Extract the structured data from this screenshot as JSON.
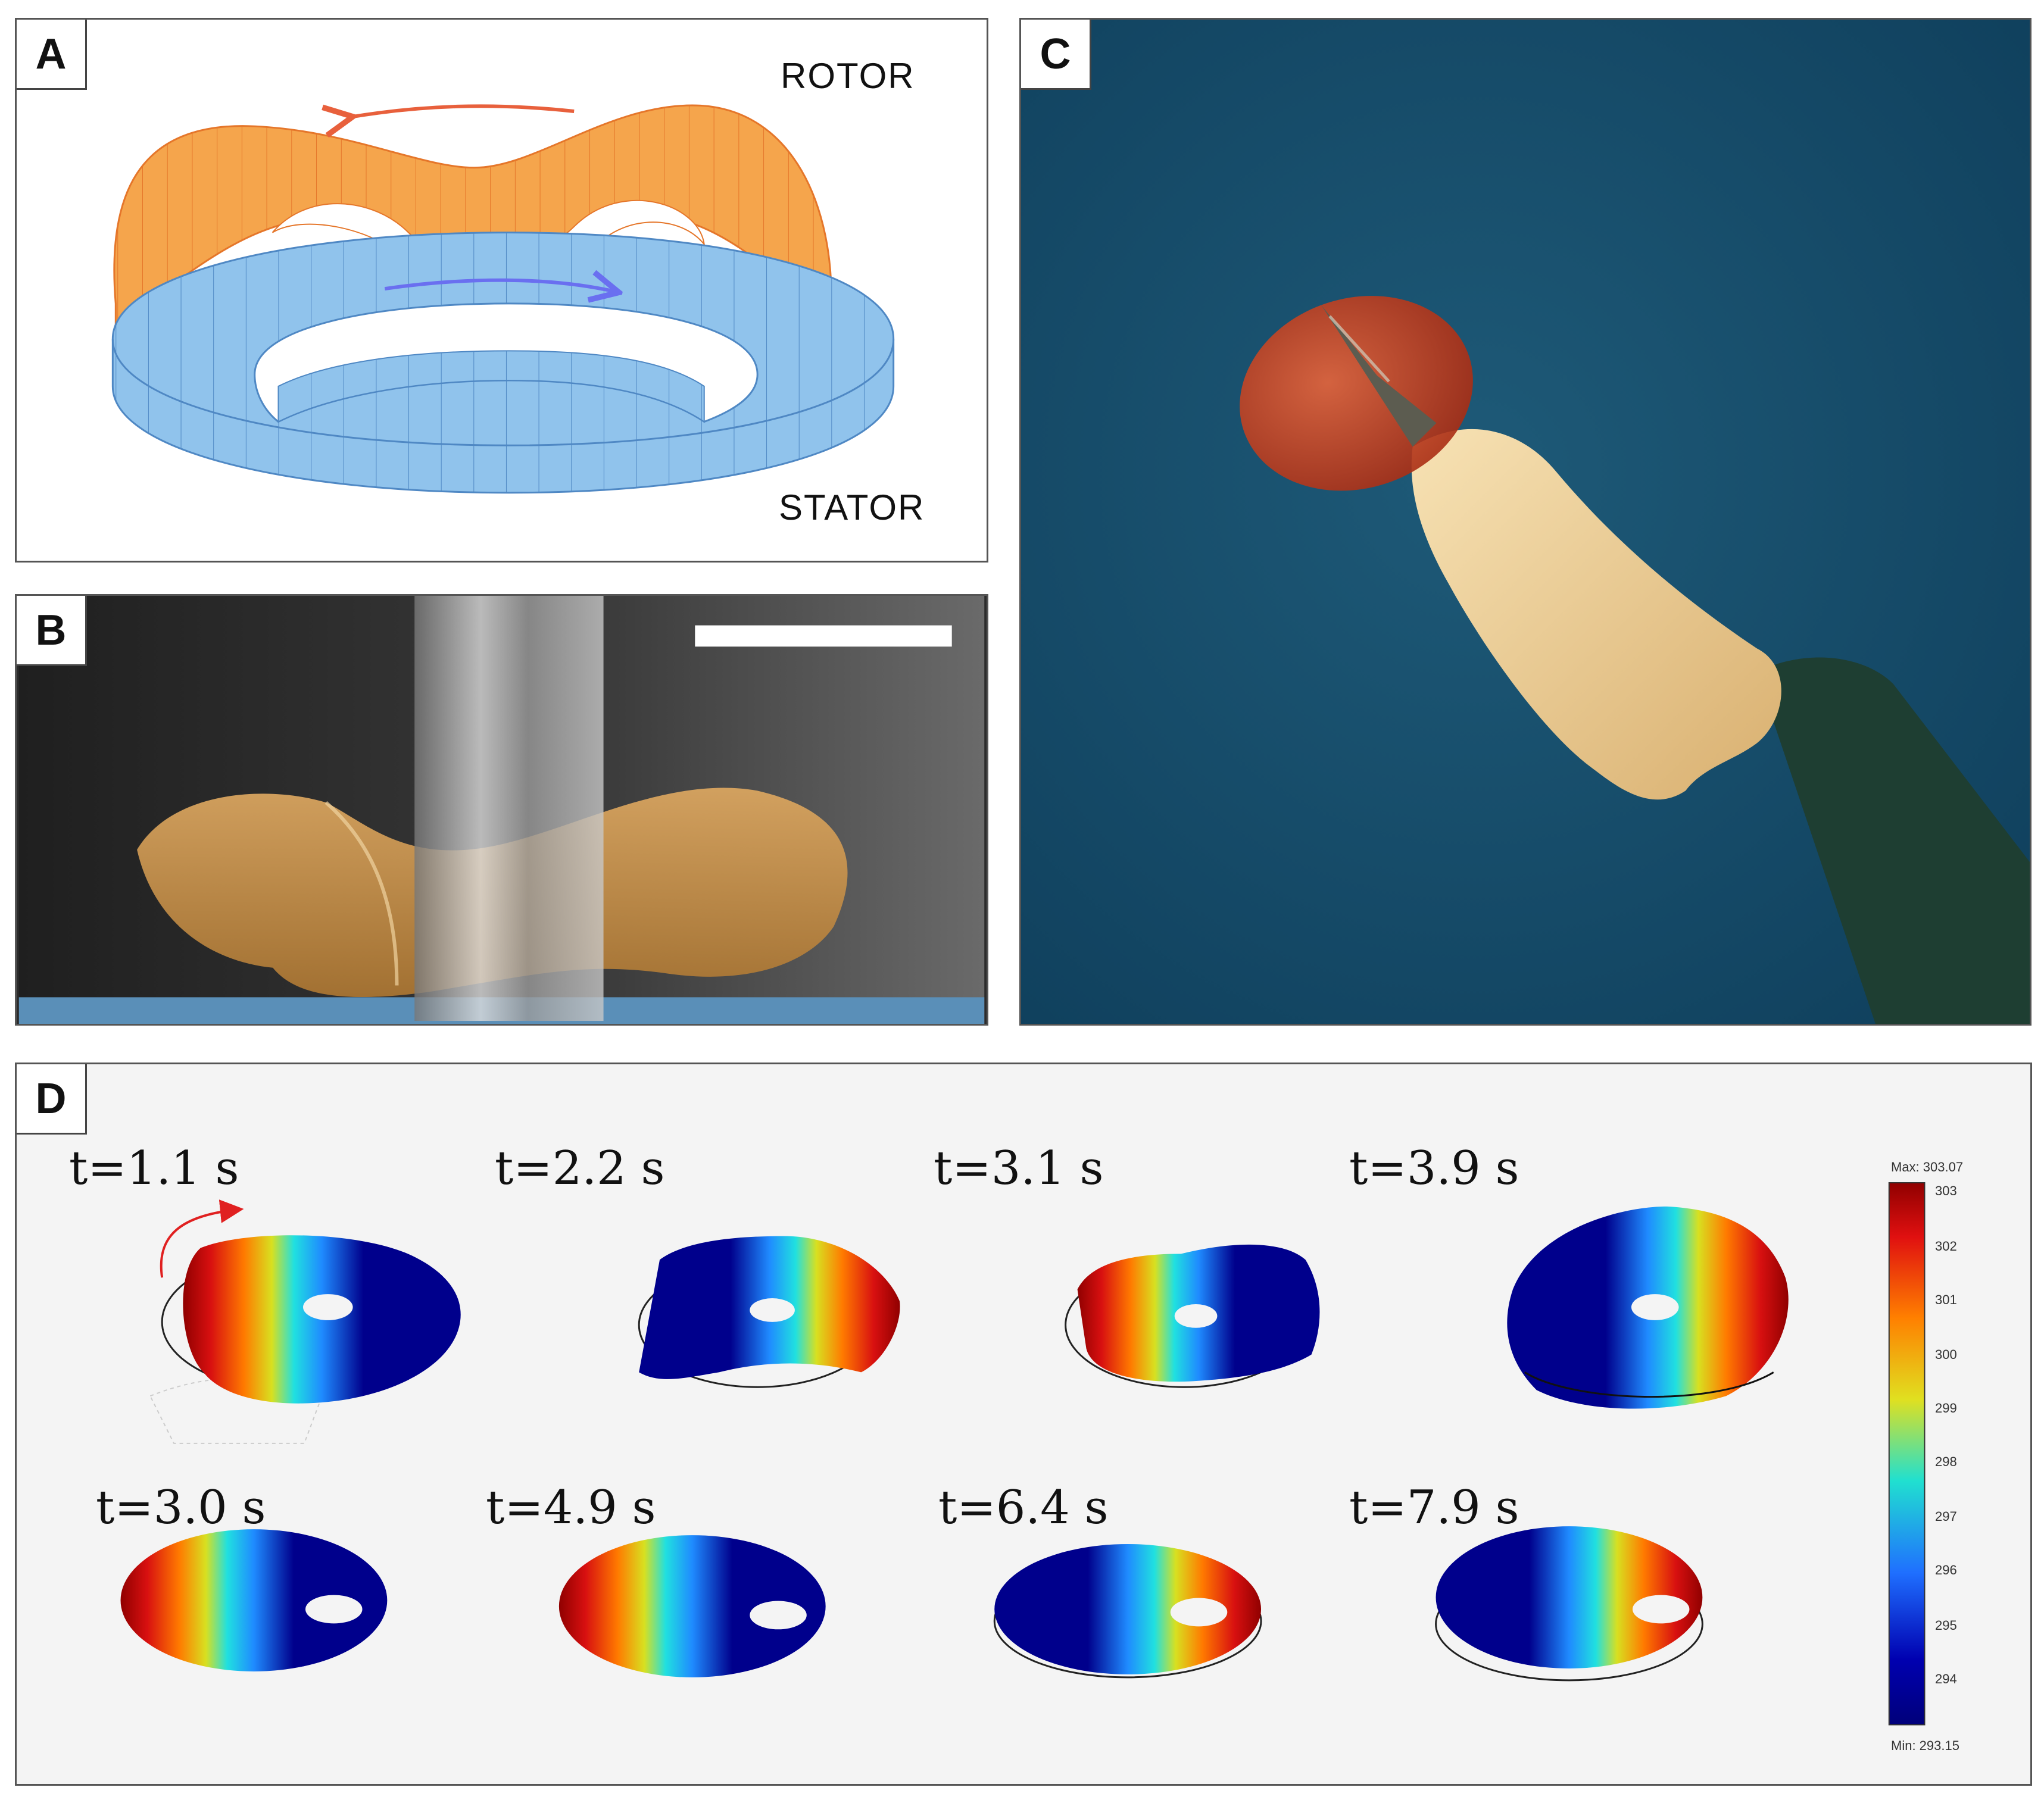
{
  "panels": {
    "a": {
      "letter": "A",
      "rotor_label": "ROTOR",
      "stator_label": "STATOR"
    },
    "b": {
      "letter": "B"
    },
    "c": {
      "letter": "C"
    },
    "d": {
      "letter": "D"
    }
  },
  "simulation": {
    "time_labels": [
      "t=1.1 s",
      "t=2.2 s",
      "t=3.1 s",
      "t=3.9 s",
      "t=3.0 s",
      "t=4.9 s",
      "t=6.4 s",
      "t=7.9 s"
    ],
    "colorbar": {
      "max_label": "Max: 303.07",
      "min_label": "Min: 293.15",
      "ticks": [
        "303",
        "302",
        "301",
        "300",
        "299",
        "298",
        "297",
        "296",
        "295",
        "294"
      ]
    }
  },
  "colors": {
    "rotor_fill": "#f5a54c",
    "rotor_stroke": "#e5762a",
    "stator_fill": "#90c3ec",
    "stator_stroke": "#4f88c4",
    "rotor_arrow": "#e8603c",
    "stator_arrow": "#6a6ff0",
    "photo_background": "#154b6a"
  }
}
